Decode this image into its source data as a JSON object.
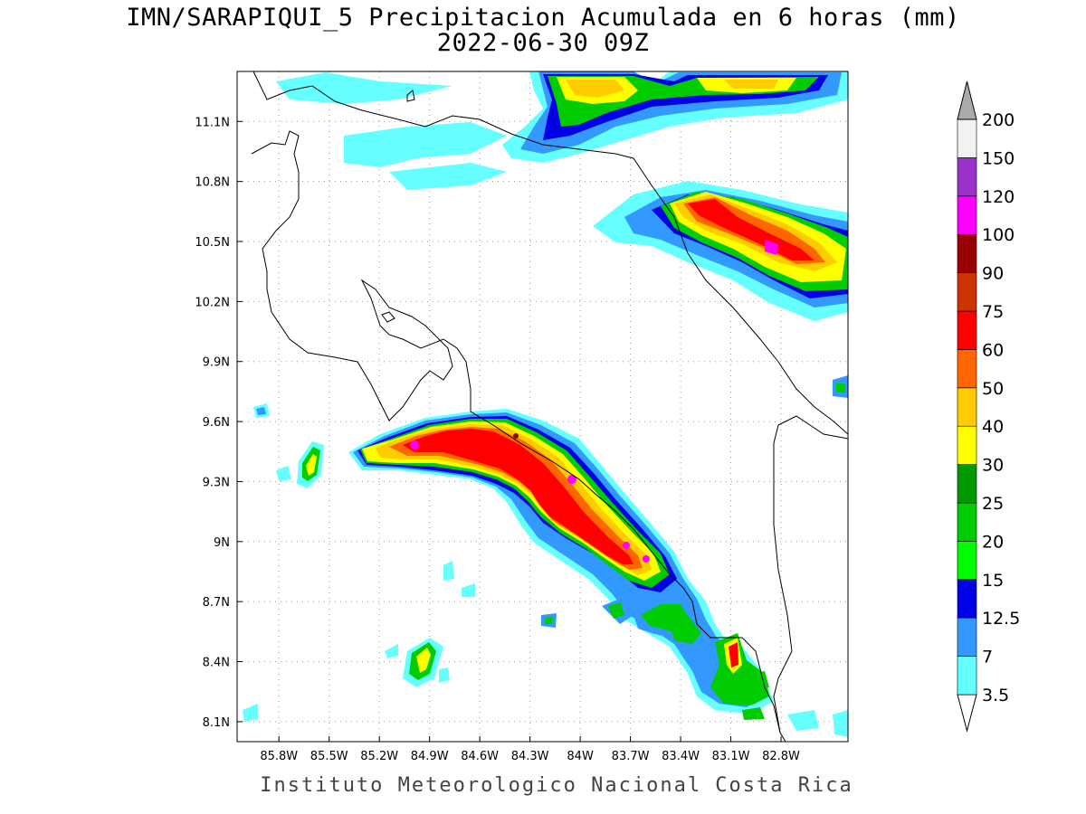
{
  "title": {
    "line1": "IMN/SARAPIQUI_5 Precipitacion Acumulada en 6 horas (mm)",
    "line2": "2022-06-30 09Z"
  },
  "footer": "Instituto Meteorologico Nacional Costa Rica",
  "map": {
    "lon_range": [
      -86.05,
      -82.4
    ],
    "lat_range": [
      8.0,
      11.35
    ],
    "grid": "dotted",
    "lon_ticks": [
      "85.8W",
      "85.5W",
      "85.2W",
      "84.9W",
      "84.6W",
      "84.3W",
      "84W",
      "83.7W",
      "83.4W",
      "83.1W",
      "82.8W"
    ],
    "lat_ticks": [
      "8.1N",
      "8.4N",
      "8.7N",
      "9N",
      "9.3N",
      "9.6N",
      "9.9N",
      "10.2N",
      "10.5N",
      "10.8N",
      "11.1N"
    ]
  },
  "colorbar": {
    "levels": [
      "3.5",
      "7",
      "12.5",
      "15",
      "20",
      "25",
      "30",
      "40",
      "50",
      "60",
      "75",
      "90",
      "100",
      "120",
      "150",
      "200"
    ],
    "colors": [
      "#66ffff",
      "#3399ff",
      "#0000e6",
      "#00ff00",
      "#00cc00",
      "#009900",
      "#ffff00",
      "#ffcc00",
      "#ff6600",
      "#ff0000",
      "#cc3300",
      "#990000",
      "#ff00ff",
      "#9933cc",
      "#f2f2f2",
      "#aaaaaa"
    ]
  }
}
